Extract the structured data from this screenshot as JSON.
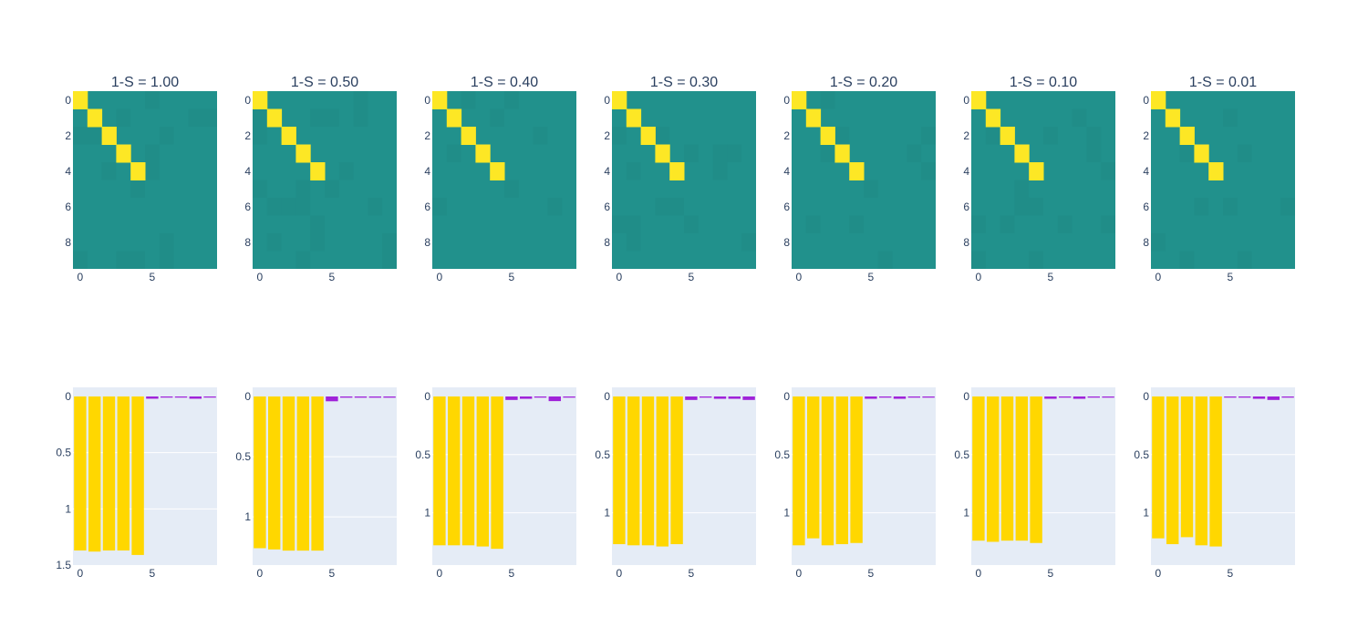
{
  "chart_data": {
    "type": "heatmap+bar",
    "panels": [
      {
        "title": "1-S = 1.00",
        "heatmap": {
          "y_ticks": [
            "0",
            "2",
            "4",
            "6",
            "8"
          ],
          "x_ticks": [
            "0",
            "5"
          ],
          "diagonal_high": [
            0,
            1,
            2,
            3,
            4
          ],
          "colors": {
            "high": "#fde725",
            "base": "#21918c"
          }
        },
        "bars": {
          "values": [
            1.37,
            1.38,
            1.37,
            1.37,
            1.41,
            0.02,
            0.01,
            0.01,
            0.02,
            0.01
          ],
          "ylim": [
            1.5,
            0
          ],
          "y_ticks": [
            "0",
            "0.5",
            "1",
            "1.5"
          ],
          "x_ticks": [
            "0",
            "5"
          ]
        }
      },
      {
        "title": "1-S = 0.50",
        "heatmap": {
          "y_ticks": [
            "0",
            "2",
            "4",
            "6",
            "8"
          ],
          "x_ticks": [
            "0",
            "5"
          ],
          "diagonal_high": [
            0,
            1,
            2,
            3,
            4
          ],
          "colors": {
            "high": "#fde725",
            "base": "#21918c"
          }
        },
        "bars": {
          "values": [
            1.26,
            1.27,
            1.28,
            1.28,
            1.28,
            0.04,
            0.01,
            0.01,
            0.01,
            0.01
          ],
          "ylim": [
            1.4,
            0
          ],
          "y_ticks": [
            "0",
            "0.5",
            "1"
          ],
          "x_ticks": [
            "0",
            "5"
          ]
        }
      },
      {
        "title": "1-S = 0.40",
        "heatmap": {
          "y_ticks": [
            "0",
            "2",
            "4",
            "6",
            "8"
          ],
          "x_ticks": [
            "0",
            "5"
          ],
          "diagonal_high": [
            0,
            1,
            2,
            3,
            4
          ],
          "colors": {
            "high": "#fde725",
            "base": "#21918c"
          }
        },
        "bars": {
          "values": [
            1.28,
            1.28,
            1.28,
            1.29,
            1.31,
            0.03,
            0.02,
            0.01,
            0.04,
            0.01
          ],
          "ylim": [
            1.45,
            0
          ],
          "y_ticks": [
            "0",
            "0.5",
            "1"
          ],
          "x_ticks": [
            "0",
            "5"
          ]
        }
      },
      {
        "title": "1-S = 0.30",
        "heatmap": {
          "y_ticks": [
            "0",
            "2",
            "4",
            "6",
            "8"
          ],
          "x_ticks": [
            "0",
            "5"
          ],
          "diagonal_high": [
            0,
            1,
            2,
            3,
            4
          ],
          "colors": {
            "high": "#fde725",
            "base": "#21918c"
          }
        },
        "bars": {
          "values": [
            1.27,
            1.28,
            1.28,
            1.29,
            1.27,
            0.03,
            0.01,
            0.02,
            0.02,
            0.03
          ],
          "ylim": [
            1.45,
            0
          ],
          "y_ticks": [
            "0",
            "0.5",
            "1"
          ],
          "x_ticks": [
            "0",
            "5"
          ]
        }
      },
      {
        "title": "1-S = 0.20",
        "heatmap": {
          "y_ticks": [
            "0",
            "2",
            "4",
            "6",
            "8"
          ],
          "x_ticks": [
            "0",
            "5"
          ],
          "diagonal_high": [
            0,
            1,
            2,
            3,
            4
          ],
          "colors": {
            "high": "#fde725",
            "base": "#21918c"
          }
        },
        "bars": {
          "values": [
            1.28,
            1.22,
            1.28,
            1.27,
            1.26,
            0.02,
            0.01,
            0.02,
            0.01,
            0.01
          ],
          "ylim": [
            1.45,
            0
          ],
          "y_ticks": [
            "0",
            "0.5",
            "1"
          ],
          "x_ticks": [
            "0",
            "5"
          ]
        }
      },
      {
        "title": "1-S = 0.10",
        "heatmap": {
          "y_ticks": [
            "0",
            "2",
            "4",
            "6",
            "8"
          ],
          "x_ticks": [
            "0",
            "5"
          ],
          "diagonal_high": [
            0,
            1,
            2,
            3,
            4
          ],
          "colors": {
            "high": "#fde725",
            "base": "#21918c"
          }
        },
        "bars": {
          "values": [
            1.24,
            1.25,
            1.24,
            1.24,
            1.26,
            0.02,
            0.01,
            0.02,
            0.01,
            0.01
          ],
          "ylim": [
            1.45,
            0
          ],
          "y_ticks": [
            "0",
            "0.5",
            "1"
          ],
          "x_ticks": [
            "0",
            "5"
          ]
        }
      },
      {
        "title": "1-S = 0.01",
        "heatmap": {
          "y_ticks": [
            "0",
            "2",
            "4",
            "6",
            "8"
          ],
          "x_ticks": [
            "0",
            "5"
          ],
          "diagonal_high": [
            0,
            1,
            2,
            3,
            4
          ],
          "colors": {
            "high": "#fde725",
            "base": "#21918c"
          }
        },
        "bars": {
          "values": [
            1.22,
            1.27,
            1.21,
            1.28,
            1.29,
            0.01,
            0.01,
            0.02,
            0.03,
            0.01
          ],
          "ylim": [
            1.45,
            0
          ],
          "y_ticks": [
            "0",
            "0.5",
            "1"
          ],
          "x_ticks": [
            "0",
            "5"
          ]
        }
      }
    ],
    "bar_colors": {
      "high": "#ffd700",
      "low": "#9400d3"
    },
    "plot_bg": "#e5ecf6",
    "grid_color": "#ffffff"
  }
}
